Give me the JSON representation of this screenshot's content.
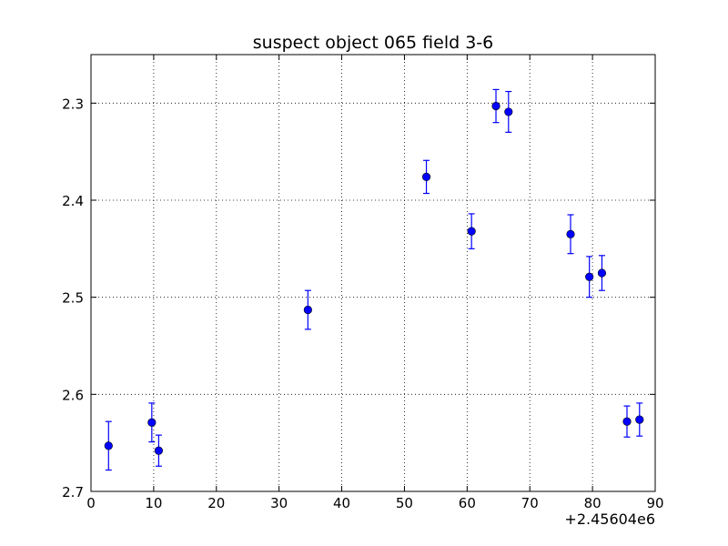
{
  "chart_data": {
    "type": "scatter",
    "title": "suspect object 065 field 3-6",
    "xlabel": "",
    "ylabel": "",
    "x_offset_label": "+2.45604e6",
    "xlim": [
      0,
      90
    ],
    "ylim": [
      2.25,
      2.7
    ],
    "y_inverted": true,
    "grid": true,
    "x_ticks": [
      "0",
      "10",
      "20",
      "30",
      "40",
      "50",
      "60",
      "70",
      "80",
      "90"
    ],
    "y_ticks": [
      "2.3",
      "2.4",
      "2.5",
      "2.6",
      "2.7"
    ],
    "marker_color": "#0000ff",
    "errorbar_color": "#0000ff",
    "points": [
      {
        "x": 2.8,
        "y": 2.653,
        "err": 0.025
      },
      {
        "x": 9.7,
        "y": 2.629,
        "err": 0.02
      },
      {
        "x": 10.8,
        "y": 2.658,
        "err": 0.016
      },
      {
        "x": 34.6,
        "y": 2.513,
        "err": 0.02
      },
      {
        "x": 53.5,
        "y": 2.376,
        "err": 0.017
      },
      {
        "x": 60.7,
        "y": 2.432,
        "err": 0.018
      },
      {
        "x": 64.6,
        "y": 2.303,
        "err": 0.017
      },
      {
        "x": 66.6,
        "y": 2.309,
        "err": 0.021
      },
      {
        "x": 76.5,
        "y": 2.435,
        "err": 0.02
      },
      {
        "x": 79.5,
        "y": 2.479,
        "err": 0.021
      },
      {
        "x": 81.5,
        "y": 2.475,
        "err": 0.018
      },
      {
        "x": 85.5,
        "y": 2.628,
        "err": 0.016
      },
      {
        "x": 87.5,
        "y": 2.626,
        "err": 0.017
      }
    ]
  }
}
